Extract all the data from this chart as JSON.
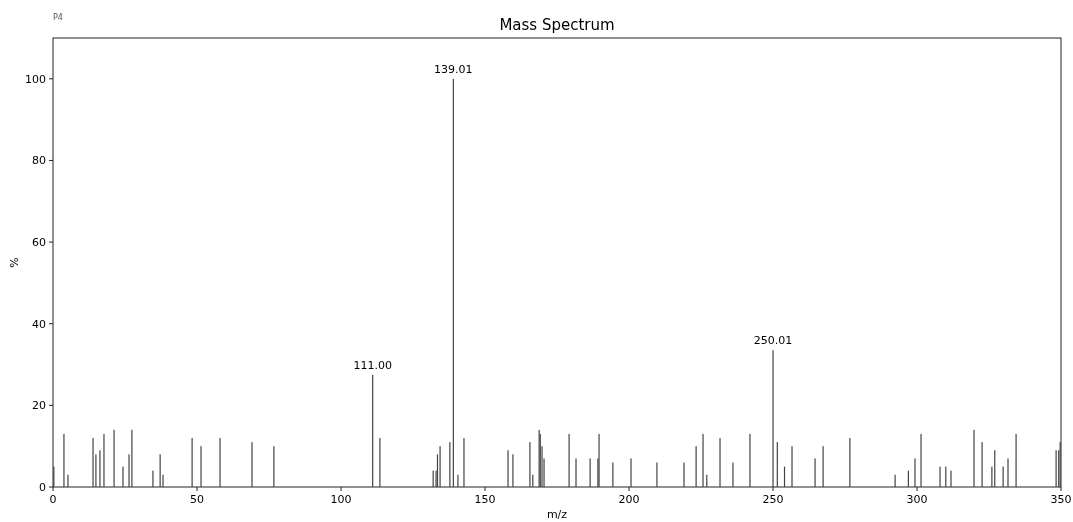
{
  "chart_data": {
    "type": "bar",
    "title": "Mass Spectrum",
    "xlabel": "m/z",
    "ylabel": "%",
    "color": "#444444",
    "x": [
      0.3,
      3.8,
      5.2,
      13.9,
      14.9,
      16.3,
      17.7,
      21.2,
      24.3,
      26.4,
      27.4,
      34.7,
      37.2,
      38.2,
      48.3,
      51.4,
      58,
      69.1,
      76.7,
      111,
      113.5,
      132,
      133,
      133.5,
      134.4,
      137.8,
      139.01,
      140.6,
      142.7,
      158,
      159.7,
      165.6,
      166.6,
      168.8,
      169.2,
      169.8,
      170.5,
      179.2,
      181.6,
      186.5,
      189.2,
      189.6,
      194.4,
      200.7,
      209.7,
      219.1,
      223.3,
      225.7,
      227,
      231.6,
      236.1,
      242,
      250.01,
      251.5,
      254,
      256.6,
      264.6,
      267.4,
      276.7,
      292.4,
      297,
      299.3,
      301.4,
      308,
      310,
      311.8,
      319.8,
      322.6,
      326,
      327,
      329.9,
      331.6,
      334.4,
      348.3,
      349.2,
      349.7
    ],
    "values": [
      5,
      13,
      3,
      12,
      8,
      9,
      13,
      14,
      5,
      8,
      14,
      4,
      8,
      3,
      12,
      10,
      12,
      11,
      10,
      27.5,
      12,
      4,
      4,
      8,
      10,
      11,
      100,
      3,
      12,
      9,
      8,
      11,
      3,
      14,
      13,
      10,
      7,
      13,
      7,
      7,
      7,
      13,
      6,
      7,
      6,
      6,
      10,
      13,
      3,
      12,
      6,
      13,
      33.5,
      11,
      5,
      10,
      7,
      10,
      12,
      3,
      4,
      7,
      13,
      5,
      5,
      4,
      14,
      11,
      5,
      9,
      5,
      7,
      13,
      9,
      9,
      11
    ],
    "xlim": [
      0,
      350
    ],
    "ylim": [
      0,
      110
    ],
    "xticks": [
      0,
      50,
      100,
      150,
      200,
      250,
      300,
      350
    ],
    "yticks": [
      0,
      20,
      40,
      60,
      80,
      100
    ],
    "grid": false,
    "annotations": [
      "P4",
      {
        "text": "111.00",
        "x": 111,
        "y": 27.5
      },
      {
        "text": "139.01",
        "x": 139.01,
        "y": 100
      },
      {
        "text": "250.01",
        "x": 250.01,
        "y": 33.5
      }
    ]
  }
}
